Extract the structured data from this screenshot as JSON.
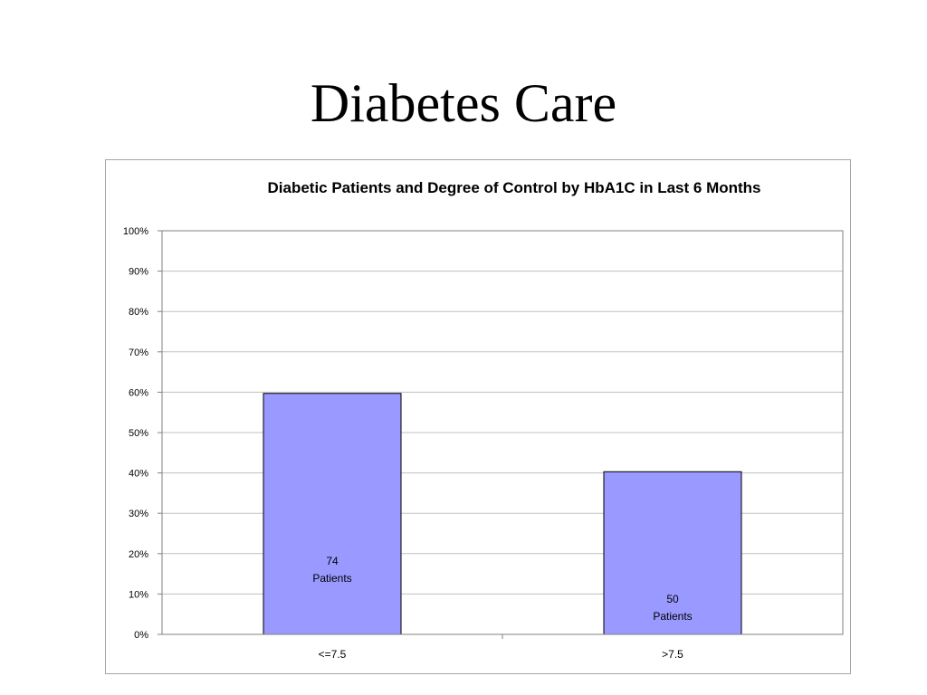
{
  "slide": {
    "title": "Diabetes Care"
  },
  "chart_data": {
    "type": "bar",
    "title": "Diabetic Patients and Degree of Control by HbA1C in Last 6 Months",
    "xlabel": "",
    "ylabel": "",
    "categories": [
      "<=7.5",
      ">7.5"
    ],
    "values": [
      59.7,
      40.3
    ],
    "ylim": [
      0,
      100
    ],
    "y_ticks": [
      0,
      10,
      20,
      30,
      40,
      50,
      60,
      70,
      80,
      90,
      100
    ],
    "y_tick_labels": [
      "0%",
      "10%",
      "20%",
      "30%",
      "40%",
      "50%",
      "60%",
      "70%",
      "80%",
      "90%",
      "100%"
    ],
    "data_labels": [
      {
        "count": "74",
        "unit": "Patients"
      },
      {
        "count": "50",
        "unit": "Patients"
      }
    ],
    "grid": true,
    "legend": "none",
    "colors": {
      "bar": "#9999ff",
      "bar_edge": "#000000",
      "grid": "#c0c0c0",
      "axis": "#808080"
    }
  }
}
